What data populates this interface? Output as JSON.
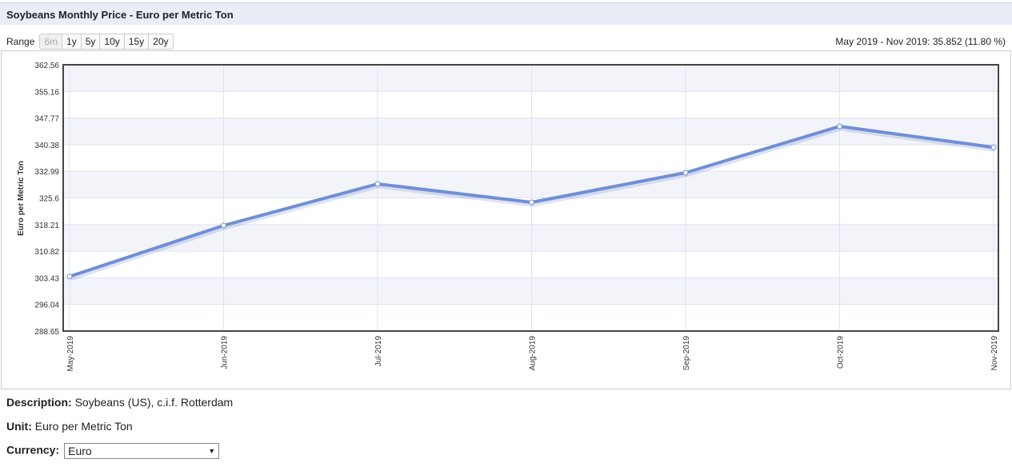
{
  "header": {
    "title": "Soybeans Monthly Price - Euro per Metric Ton"
  },
  "range": {
    "label": "Range",
    "options": [
      "6m",
      "1y",
      "5y",
      "10y",
      "15y",
      "20y"
    ],
    "summary": "May 2019 - Nov 2019: 35.852 (11.80 %)"
  },
  "chart_data": {
    "type": "line",
    "y_label": "Euro per Metric Ton",
    "categories": [
      "May-2019",
      "Jun-2019",
      "Jul-2019",
      "Aug-2019",
      "Sep-2019",
      "Oct-2019",
      "Nov-2019"
    ],
    "series": [
      {
        "name": "Soybeans",
        "color": "#6f8fd6",
        "values": [
          303.8,
          317.95,
          329.49,
          324.38,
          332.6,
          345.47,
          339.65
        ]
      }
    ],
    "ylim": [
      288.65,
      362.56
    ],
    "yticks": [
      288.65,
      296.04,
      303.43,
      310.82,
      318.21,
      325.6,
      332.99,
      340.38,
      347.77,
      355.16,
      362.56
    ],
    "grid": true
  },
  "info": {
    "description_label": "Description:",
    "description": "Soybeans (US), c.i.f. Rotterdam",
    "unit_label": "Unit:",
    "unit": "Euro per Metric Ton",
    "currency_label": "Currency:",
    "currency": "Euro"
  }
}
